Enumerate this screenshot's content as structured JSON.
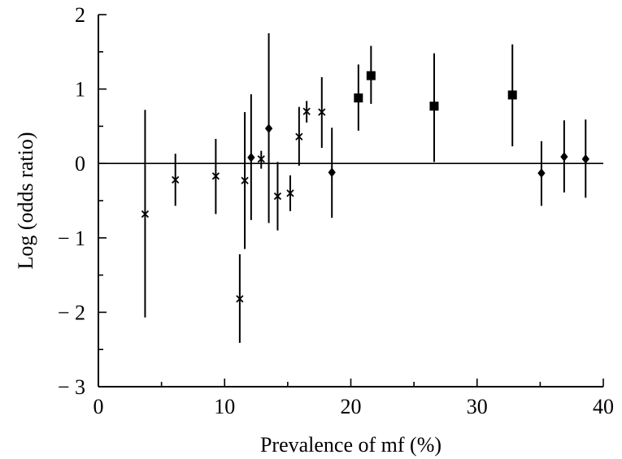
{
  "chart_data": {
    "type": "scatter",
    "title": "",
    "xlabel": "Prevalence of mf (%)",
    "ylabel": "Log (odds ratio)",
    "xlim": [
      0,
      40
    ],
    "ylim": [
      -3,
      2
    ],
    "x_ticks": [
      0,
      10,
      20,
      30,
      40
    ],
    "x_tick_labels": [
      "0",
      "10",
      "20",
      "30",
      "40"
    ],
    "y_ticks": [
      -3,
      -2,
      -1,
      0,
      1,
      2
    ],
    "y_tick_labels": [
      "− 3",
      "− 2",
      "− 1",
      "0",
      "1",
      "2"
    ],
    "reference_line_y": 0,
    "grid": false,
    "series": [
      {
        "marker": "cross",
        "points": [
          {
            "x": 3.7,
            "y": -0.68,
            "low": -2.07,
            "high": 0.72
          },
          {
            "x": 6.1,
            "y": -0.22,
            "low": -0.57,
            "high": 0.13
          },
          {
            "x": 9.3,
            "y": -0.17,
            "low": -0.68,
            "high": 0.33
          },
          {
            "x": 11.2,
            "y": -1.82,
            "low": -2.41,
            "high": -1.22
          },
          {
            "x": 11.6,
            "y": -0.23,
            "low": -1.15,
            "high": 0.69
          },
          {
            "x": 12.9,
            "y": 0.06,
            "low": -0.07,
            "high": 0.17
          },
          {
            "x": 14.2,
            "y": -0.44,
            "low": -0.9,
            "high": 0.02
          },
          {
            "x": 15.2,
            "y": -0.4,
            "low": -0.64,
            "high": -0.16
          },
          {
            "x": 15.9,
            "y": 0.36,
            "low": -0.03,
            "high": 0.76
          },
          {
            "x": 16.5,
            "y": 0.7,
            "low": 0.55,
            "high": 0.84
          },
          {
            "x": 17.7,
            "y": 0.69,
            "low": 0.21,
            "high": 1.16
          }
        ]
      },
      {
        "marker": "diamond",
        "points": [
          {
            "x": 12.1,
            "y": 0.08,
            "low": -0.76,
            "high": 0.93
          },
          {
            "x": 13.5,
            "y": 0.47,
            "low": -0.8,
            "high": 1.75
          },
          {
            "x": 18.5,
            "y": -0.12,
            "low": -0.73,
            "high": 0.48
          },
          {
            "x": 35.1,
            "y": -0.13,
            "low": -0.57,
            "high": 0.3
          },
          {
            "x": 36.9,
            "y": 0.09,
            "low": -0.39,
            "high": 0.58
          },
          {
            "x": 38.6,
            "y": 0.06,
            "low": -0.46,
            "high": 0.59
          }
        ]
      },
      {
        "marker": "square",
        "points": [
          {
            "x": 20.6,
            "y": 0.88,
            "low": 0.44,
            "high": 1.33
          },
          {
            "x": 21.6,
            "y": 1.18,
            "low": 0.8,
            "high": 1.58
          },
          {
            "x": 26.6,
            "y": 0.77,
            "low": 0.02,
            "high": 1.48
          },
          {
            "x": 32.8,
            "y": 0.92,
            "low": 0.23,
            "high": 1.6
          }
        ]
      }
    ]
  }
}
